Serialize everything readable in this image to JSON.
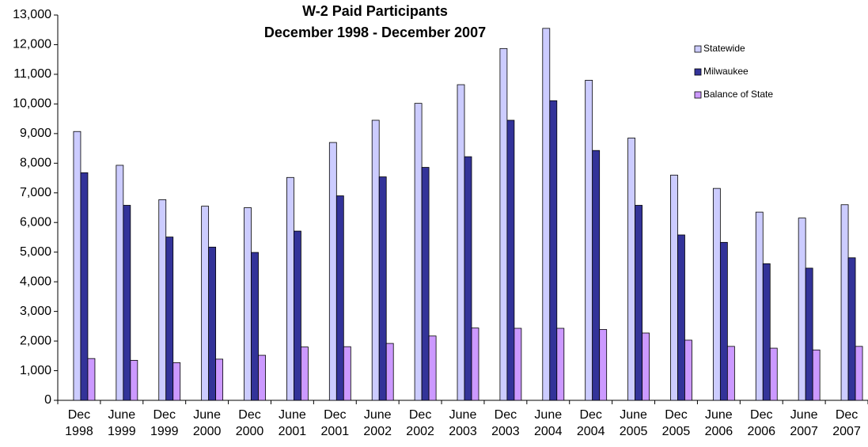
{
  "chart_data": {
    "type": "bar",
    "title": "W-2 Paid Participants",
    "subtitle": "December 1998 - December 2007",
    "categories": [
      "Dec 1998",
      "June 1999",
      "Dec 1999",
      "June 2000",
      "Dec 2000",
      "June 2001",
      "Dec 2001",
      "June 2002",
      "Dec 2002",
      "June 2003",
      "Dec 2003",
      "June 2004",
      "Dec 2004",
      "June 2005",
      "Dec 2005",
      "June 2006",
      "Dec 2006",
      "June 2007",
      "Dec 2007"
    ],
    "series": [
      {
        "name": "Statewide",
        "color": "#ccccff",
        "values": [
          9070,
          7930,
          6770,
          6550,
          6500,
          7520,
          8700,
          9450,
          10020,
          10650,
          11870,
          12550,
          10800,
          8850,
          7600,
          7150,
          6350,
          6150,
          6600
        ]
      },
      {
        "name": "Milwaukee",
        "color": "#333399",
        "values": [
          7680,
          6580,
          5510,
          5170,
          4990,
          5710,
          6900,
          7540,
          7860,
          8220,
          9450,
          10110,
          8430,
          6580,
          5580,
          5330,
          4610,
          4460,
          4810
        ]
      },
      {
        "name": "Balance of State",
        "color": "#cc99ff",
        "values": [
          1410,
          1350,
          1270,
          1390,
          1520,
          1800,
          1810,
          1920,
          2170,
          2440,
          2430,
          2430,
          2390,
          2270,
          2030,
          1820,
          1760,
          1700,
          1820
        ]
      }
    ],
    "ylim": [
      0,
      13000
    ],
    "yticks": [
      0,
      {
        "value": 1000,
        "label": "1,000"
      },
      {
        "value": 2000,
        "label": "2,000"
      },
      {
        "value": 3000,
        "label": "3,000"
      },
      {
        "value": 4000,
        "label": "4,000"
      },
      {
        "value": 5000,
        "label": "5,000"
      },
      {
        "value": 6000,
        "label": "6,000"
      },
      {
        "value": 7000,
        "label": "7,000"
      },
      {
        "value": 8000,
        "label": "8,000"
      },
      {
        "value": 9000,
        "label": "9,000"
      },
      {
        "value": 10000,
        "label": "10,000"
      },
      {
        "value": 11000,
        "label": "11,000"
      },
      {
        "value": 12000,
        "label": "12,000"
      },
      {
        "value": 13000,
        "label": "13,000"
      }
    ],
    "grid": false,
    "legend": "top-right"
  }
}
